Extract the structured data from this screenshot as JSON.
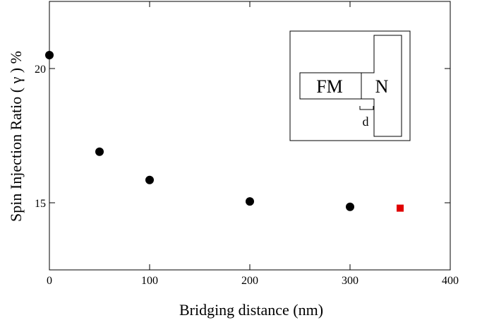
{
  "chart_data": {
    "type": "scatter",
    "title": "",
    "xlabel": "Bridging distance (nm)",
    "ylabel": "Spin Injection Ratio ( γ ) %",
    "xlim": [
      0,
      400
    ],
    "ylim": [
      12.5,
      22.5
    ],
    "x_ticks": [
      0,
      100,
      200,
      300,
      400
    ],
    "y_ticks": [
      15,
      20
    ],
    "grid": false,
    "legend": "none",
    "series": [
      {
        "marker": "circle",
        "color": "#000000",
        "points": [
          {
            "x": 0,
            "y": 20.5
          },
          {
            "x": 50,
            "y": 16.9
          },
          {
            "x": 100,
            "y": 15.85
          },
          {
            "x": 200,
            "y": 15.05
          },
          {
            "x": 300,
            "y": 14.85
          }
        ]
      },
      {
        "marker": "square",
        "color": "#e00000",
        "points": [
          {
            "x": 350,
            "y": 14.8
          }
        ]
      }
    ],
    "inset": {
      "fm_label": "FM",
      "n_label": "N",
      "d_label": "d"
    }
  }
}
